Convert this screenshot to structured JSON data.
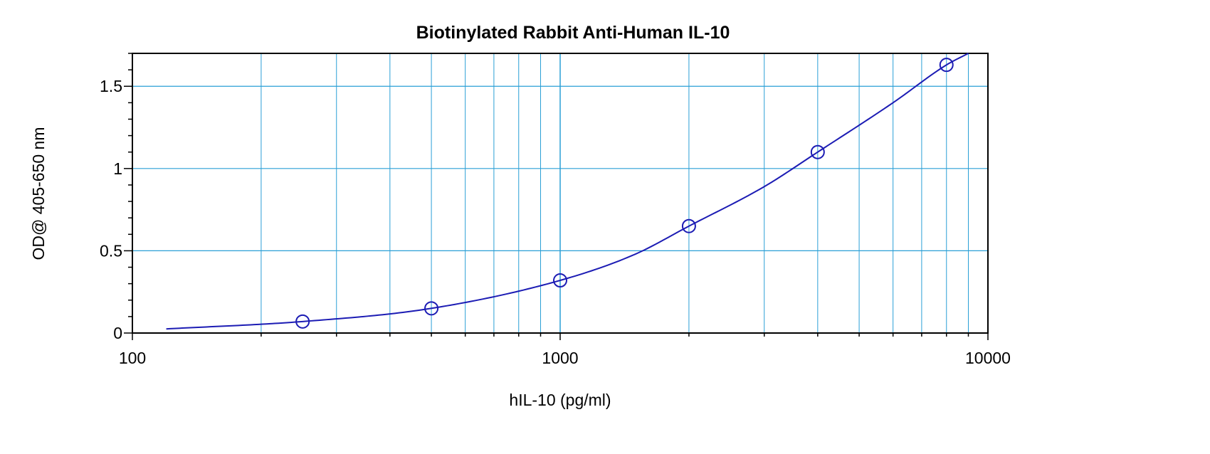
{
  "chart_data": {
    "type": "scatter",
    "title": "Biotinylated Rabbit Anti-Human IL-10",
    "xlabel": "hIL-10 (pg/ml)",
    "ylabel": "OD@ 405-650 nm",
    "x_scale": "log",
    "xlim": [
      100,
      10000
    ],
    "ylim": [
      0,
      1.7
    ],
    "x_tick_labels": [
      "100",
      "1000",
      "10000"
    ],
    "y_tick_labels": [
      "0",
      "0.5",
      "1",
      "1.5"
    ],
    "grid": true,
    "series": [
      {
        "points": [
          {
            "x": 250,
            "y": 0.07
          },
          {
            "x": 500,
            "y": 0.15
          },
          {
            "x": 1000,
            "y": 0.32
          },
          {
            "x": 2000,
            "y": 0.65
          },
          {
            "x": 4000,
            "y": 1.1
          },
          {
            "x": 8000,
            "y": 1.63
          }
        ],
        "fit_curve": [
          {
            "x": 120,
            "y": 0.025
          },
          {
            "x": 250,
            "y": 0.07
          },
          {
            "x": 500,
            "y": 0.15
          },
          {
            "x": 1000,
            "y": 0.32
          },
          {
            "x": 1500,
            "y": 0.48
          },
          {
            "x": 2000,
            "y": 0.65
          },
          {
            "x": 3000,
            "y": 0.89
          },
          {
            "x": 4000,
            "y": 1.1
          },
          {
            "x": 6000,
            "y": 1.4
          },
          {
            "x": 8000,
            "y": 1.63
          },
          {
            "x": 9000,
            "y": 1.7
          }
        ]
      }
    ],
    "colors": {
      "grid": "#2a9fd6",
      "series": "#1c1cb4",
      "axes": "#000000"
    }
  }
}
